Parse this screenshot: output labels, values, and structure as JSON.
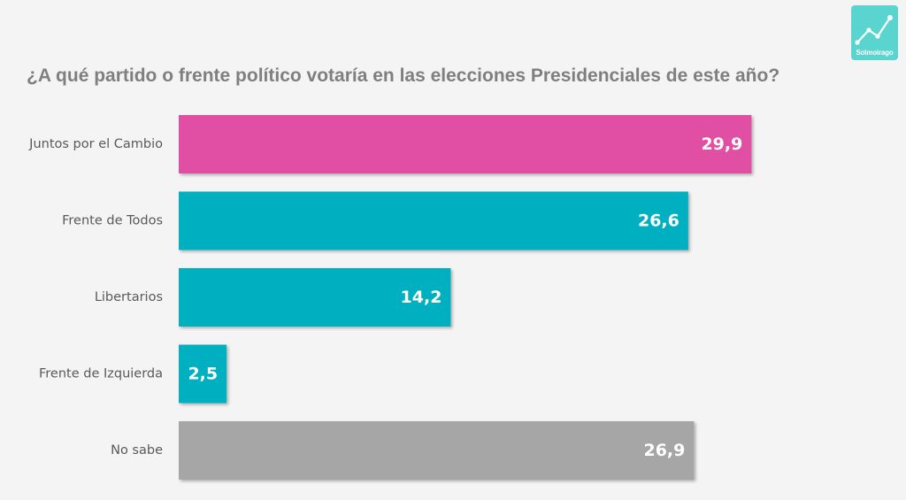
{
  "logo": {
    "text": "Solmoirago",
    "icon": "trend-line-icon",
    "color": "#59d4cf"
  },
  "chart_data": {
    "type": "bar",
    "orientation": "horizontal",
    "title": "¿A qué partido o frente político votaría en las elecciones Presidenciales de este año?",
    "xlabel": "",
    "ylabel": "",
    "categories": [
      "Juntos por el Cambio",
      "Frente de Todos",
      "Libertarios",
      "Frente de Izquierda",
      "No sabe"
    ],
    "values": [
      29.9,
      26.6,
      14.2,
      2.5,
      26.9
    ],
    "value_labels": [
      "29,9",
      "26,6",
      "14,2",
      "2,5",
      "26,9"
    ],
    "colors": [
      "#e050a4",
      "#00b0c0",
      "#00b0c0",
      "#00b0c0",
      "#a6a6a6"
    ],
    "xlim": [
      0,
      30
    ],
    "grid": false,
    "legend": "none"
  }
}
